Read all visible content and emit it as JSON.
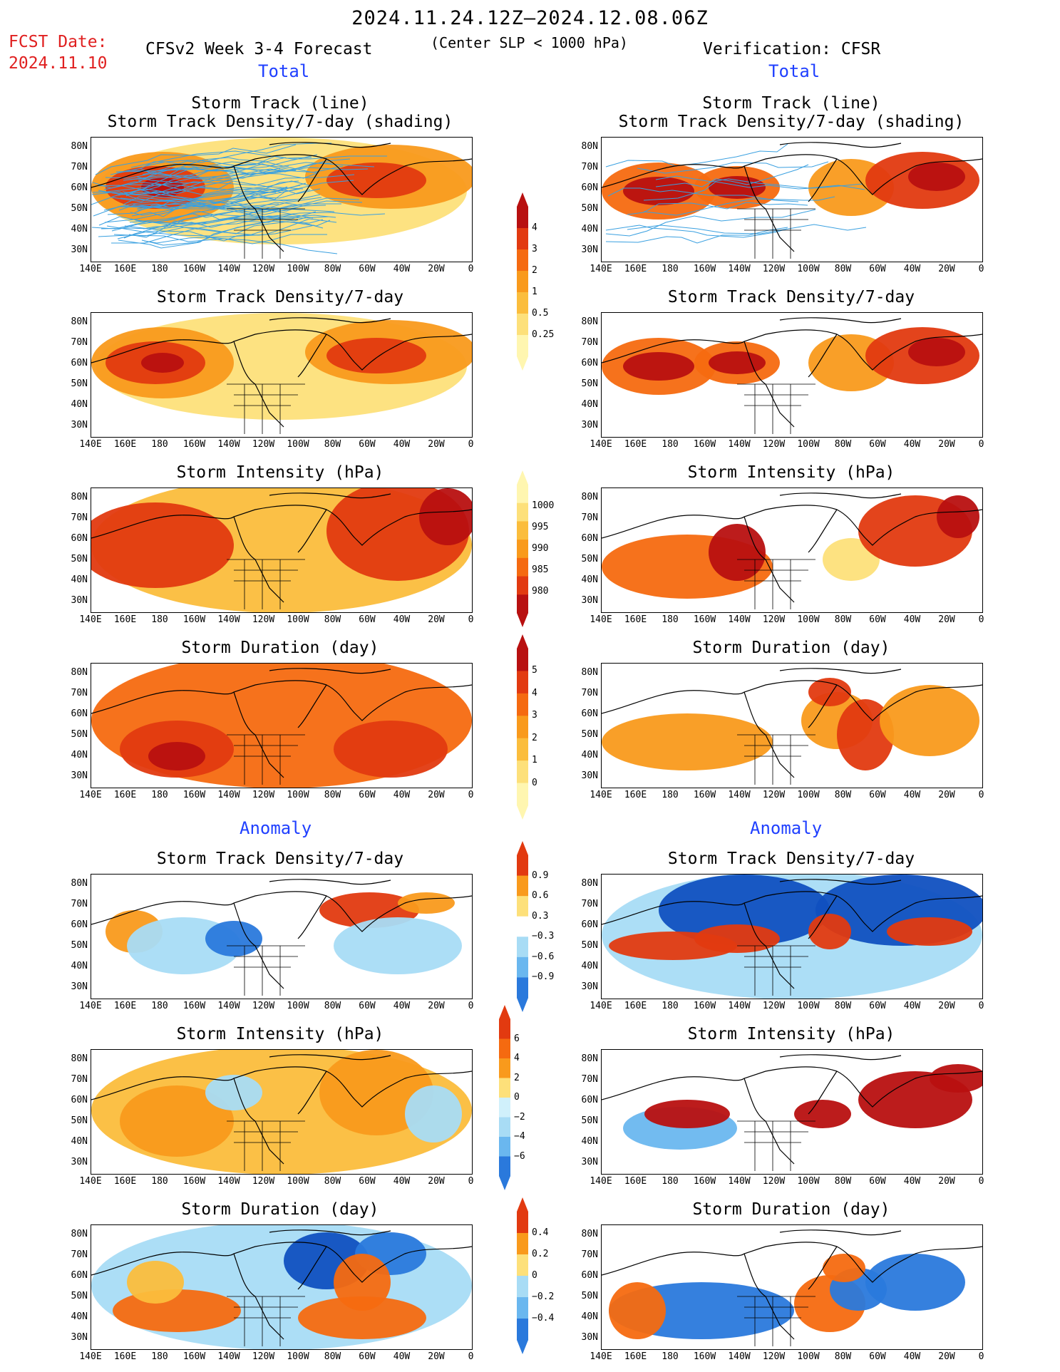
{
  "header": {
    "date_range": "2024.11.24.12Z–2024.12.08.06Z",
    "fcst_label": "FCST Date:",
    "fcst_date": "2024.11.10",
    "model": "CFSv2 Week 3-4 Forecast",
    "criterion": "(Center SLP < 1000 hPa)",
    "verification": "Verification: CFSR"
  },
  "sections": {
    "total": "Total",
    "anomaly": "Anomaly"
  },
  "panels": {
    "track_line_title1": "Storm Track (line)",
    "track_line_title2": "Storm Track Density/7-day (shading)",
    "density_title": "Storm Track Density/7-day",
    "intensity_title": "Storm Intensity (hPa)",
    "duration_title": "Storm Duration (day)"
  },
  "axes": {
    "lat_labels": [
      "80N",
      "70N",
      "60N",
      "50N",
      "40N",
      "30N"
    ],
    "lon_labels": [
      "140E",
      "160E",
      "180",
      "160W",
      "140W",
      "120W",
      "100W",
      "80W",
      "60W",
      "40W",
      "20W",
      "0"
    ]
  },
  "colorbars": {
    "density_total": [
      "4",
      "3",
      "2",
      "1",
      "0.5",
      "0.25"
    ],
    "intensity_total": [
      "1000",
      "995",
      "990",
      "985",
      "980"
    ],
    "duration_total": [
      "5",
      "4",
      "3",
      "2",
      "1",
      "0"
    ],
    "density_anom": [
      "0.9",
      "0.6",
      "0.3",
      "−0.3",
      "−0.6",
      "−0.9"
    ],
    "intensity_anom": [
      "6",
      "4",
      "2",
      "0",
      "−2",
      "−4",
      "−6"
    ],
    "duration_anom": [
      "0.4",
      "0.2",
      "0",
      "−0.2",
      "−0.4"
    ]
  },
  "colors": {
    "warm": [
      "#fff6b0",
      "#fde07a",
      "#fbbd3c",
      "#f99a1c",
      "#f56a10",
      "#e23a10",
      "#b81010"
    ],
    "cool": [
      "#d0f0fb",
      "#a8dcf5",
      "#6ab7ef",
      "#2a79dc",
      "#1050c0"
    ],
    "track_line": "#3aa0e0"
  }
}
